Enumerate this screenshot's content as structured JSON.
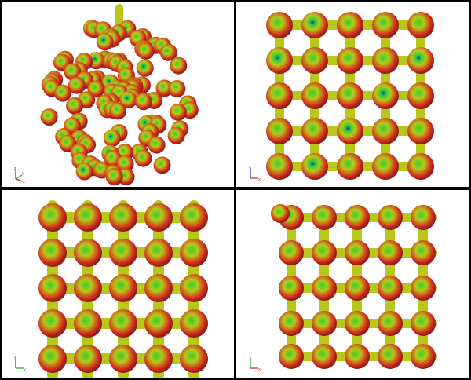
{
  "colors": {
    "background": "#ffffff",
    "frame": "#000000",
    "surface_high": "#d42a1e",
    "surface_mid": "#b8c81a",
    "surface_low": "#2fd12f",
    "surface_min": "#1a3cc9",
    "axis_x": "#d42020",
    "axis_y": "#20a020",
    "axis_z": "#2030d0"
  },
  "viewports": [
    {
      "name": "isometric-view",
      "axes": {
        "labels": [
          "z",
          "y",
          "x"
        ]
      }
    },
    {
      "name": "front-view",
      "axes": {
        "labels": [
          "z",
          "x"
        ]
      }
    },
    {
      "name": "side-view",
      "axes": {
        "labels": [
          "z",
          "y"
        ]
      }
    },
    {
      "name": "top-view",
      "axes": {
        "labels": [
          "y",
          "x"
        ]
      }
    }
  ]
}
